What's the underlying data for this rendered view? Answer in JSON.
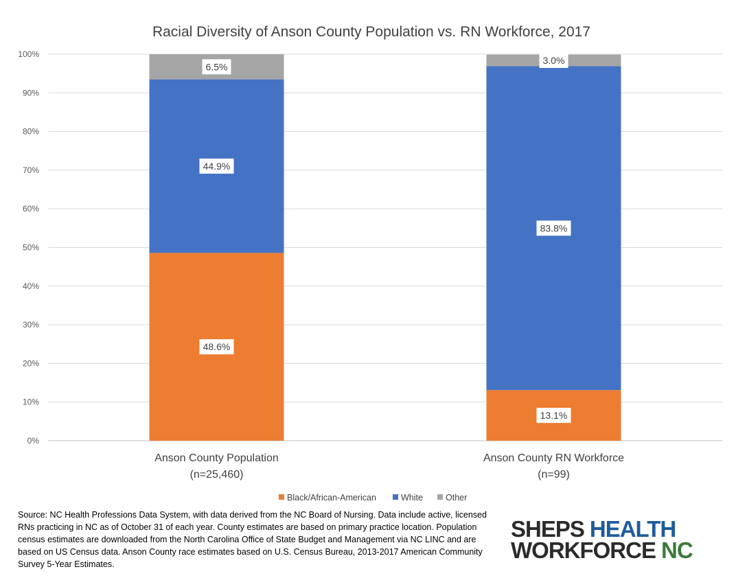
{
  "chart_data": {
    "type": "bar",
    "stacked": true,
    "title": "Racial Diversity of Anson County Population vs. RN Workforce, 2017",
    "xlabel": "",
    "ylabel": "",
    "categories": [
      [
        "Anson County Population",
        "(n=25,460)"
      ],
      [
        "Anson County RN Workforce",
        "(n=99)"
      ]
    ],
    "series": [
      {
        "name": "Black/African-American",
        "color": "#ED7D31",
        "values": [
          48.6,
          13.1
        ],
        "labels": [
          "48.6%",
          "13.1%"
        ]
      },
      {
        "name": "White",
        "color": "#4472C4",
        "values": [
          44.9,
          83.8
        ],
        "labels": [
          "44.9%",
          "83.8%"
        ]
      },
      {
        "name": "Other",
        "color": "#A5A5A5",
        "values": [
          6.5,
          3.0
        ],
        "labels": [
          "6.5%",
          "3.0%"
        ]
      }
    ],
    "ylim": [
      0,
      100
    ],
    "yticks": [
      "0%",
      "10%",
      "20%",
      "30%",
      "40%",
      "50%",
      "60%",
      "70%",
      "80%",
      "90%",
      "100%"
    ],
    "grid": true,
    "legend_position": "bottom"
  },
  "source_note": "Source: NC Health Professions Data System, with data derived from the NC Board of Nursing.  Data include active, licensed RNs practicing in NC as of October 31 of each year. County estimates are based on primary practice location. Population census estimates are downloaded from the North Carolina Office of State Budget and Management via NC LINC and are based on US Census data.  Anson County race estimates based on U.S. Census Bureau, 2013-2017 American Community Survey 5-Year Estimates.",
  "logo": {
    "line1_a": "SHEPS",
    "line1_b": "HEALTH",
    "line2_a": "WORKFORCE",
    "line2_b": "NC",
    "colors": {
      "dark": "#2B2B2B",
      "blue": "#1F5C9E",
      "green": "#3A7A3A"
    }
  }
}
